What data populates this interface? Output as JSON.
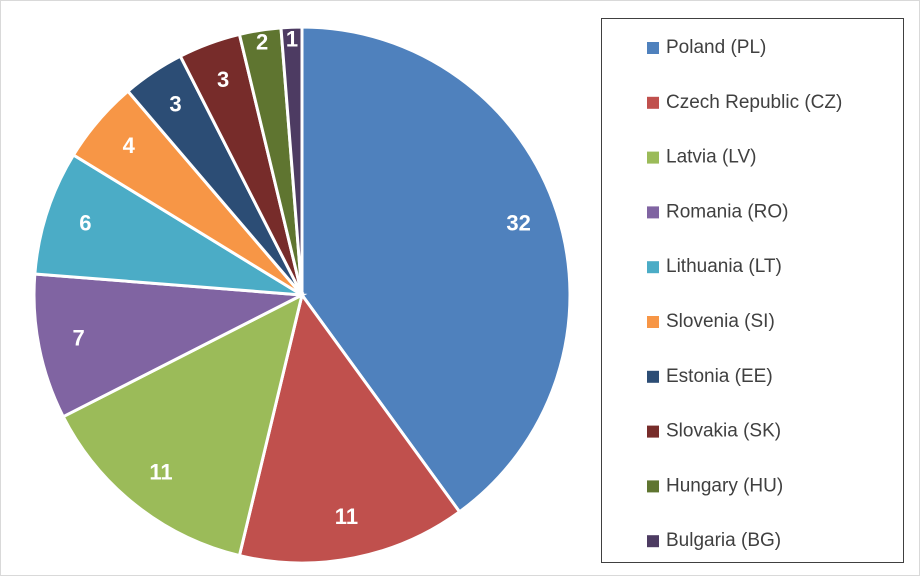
{
  "chart_data": {
    "type": "pie",
    "categories": [
      "Poland (PL)",
      "Czech Republic (CZ)",
      "Latvia (LV)",
      "Romania (RO)",
      "Lithuania (LT)",
      "Slovenia (SI)",
      "Estonia (EE)",
      "Slovakia (SK)",
      "Hungary (HU)",
      "Bulgaria (BG)"
    ],
    "values": [
      32,
      11,
      11,
      7,
      6,
      4,
      3,
      3,
      2,
      1
    ],
    "colors": [
      "#4f81bd",
      "#c0504d",
      "#9bbb59",
      "#8064a2",
      "#4bacc6",
      "#f79646",
      "#2c4d75",
      "#772c2a",
      "#5f7530",
      "#4d3b62"
    ],
    "legend": "right"
  }
}
